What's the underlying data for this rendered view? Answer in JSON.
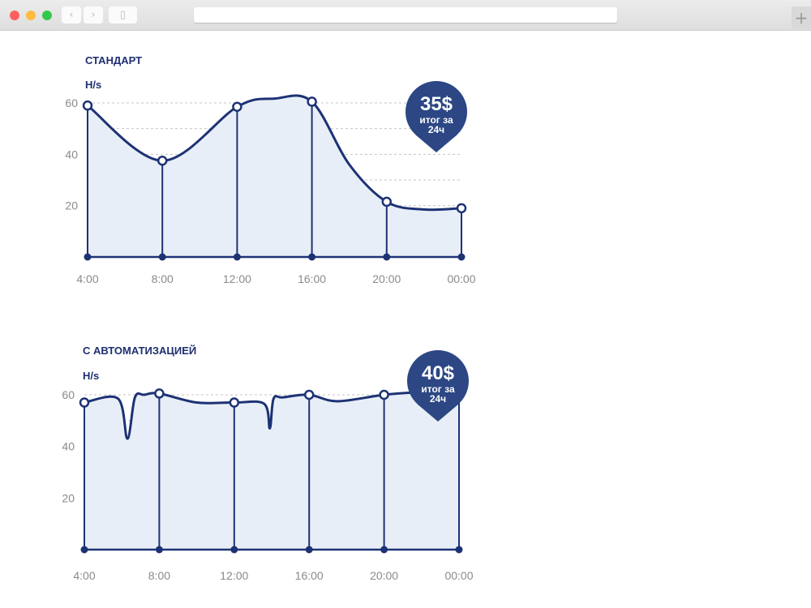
{
  "browser": {
    "url": ""
  },
  "chart_data": [
    {
      "type": "area",
      "title": "СТАНДАРТ",
      "ylabel": "H/s",
      "ylim": [
        0,
        60
      ],
      "yticks": [
        "20",
        "40",
        "60"
      ],
      "xticks": [
        "4:00",
        "8:00",
        "12:00",
        "16:00",
        "20:00",
        "00:00"
      ],
      "grid": true,
      "marker_x": [
        4,
        8,
        12,
        16,
        20,
        24
      ],
      "x": [
        4,
        8,
        12,
        14,
        16,
        18,
        20,
        22,
        24
      ],
      "y": [
        59,
        37.5,
        58.5,
        61.7,
        60.5,
        36,
        21.5,
        18.5,
        19
      ],
      "badge": {
        "value": "35$",
        "caption1": "итог за",
        "caption2": "24ч"
      },
      "color": "#1d3275",
      "fill": "#e8eef7",
      "badge_color": "#2c4784"
    },
    {
      "type": "area",
      "title": "С АВТОМАТИЗАЦИЕЙ",
      "ylabel": "H/s",
      "ylim": [
        0,
        60
      ],
      "yticks": [
        "20",
        "40",
        "60"
      ],
      "xticks": [
        "4:00",
        "8:00",
        "12:00",
        "16:00",
        "20:00",
        "00:00"
      ],
      "grid": true,
      "marker_x": [
        4,
        8,
        12,
        16,
        20,
        24
      ],
      "x": [
        4,
        5.8,
        6.3,
        6.7,
        7.2,
        8,
        10,
        12,
        13.6,
        13.9,
        14.1,
        14.6,
        16,
        17.5,
        20,
        22,
        24
      ],
      "y": [
        57,
        58.5,
        43,
        59,
        60,
        60.5,
        57,
        57,
        56.5,
        47,
        58.5,
        59,
        60,
        57.5,
        60,
        61,
        61
      ],
      "badge": {
        "value": "40$",
        "caption1": "итог за",
        "caption2": "24ч"
      },
      "color": "#1d3275",
      "fill": "#e8eef7",
      "badge_color": "#2c4784"
    }
  ]
}
